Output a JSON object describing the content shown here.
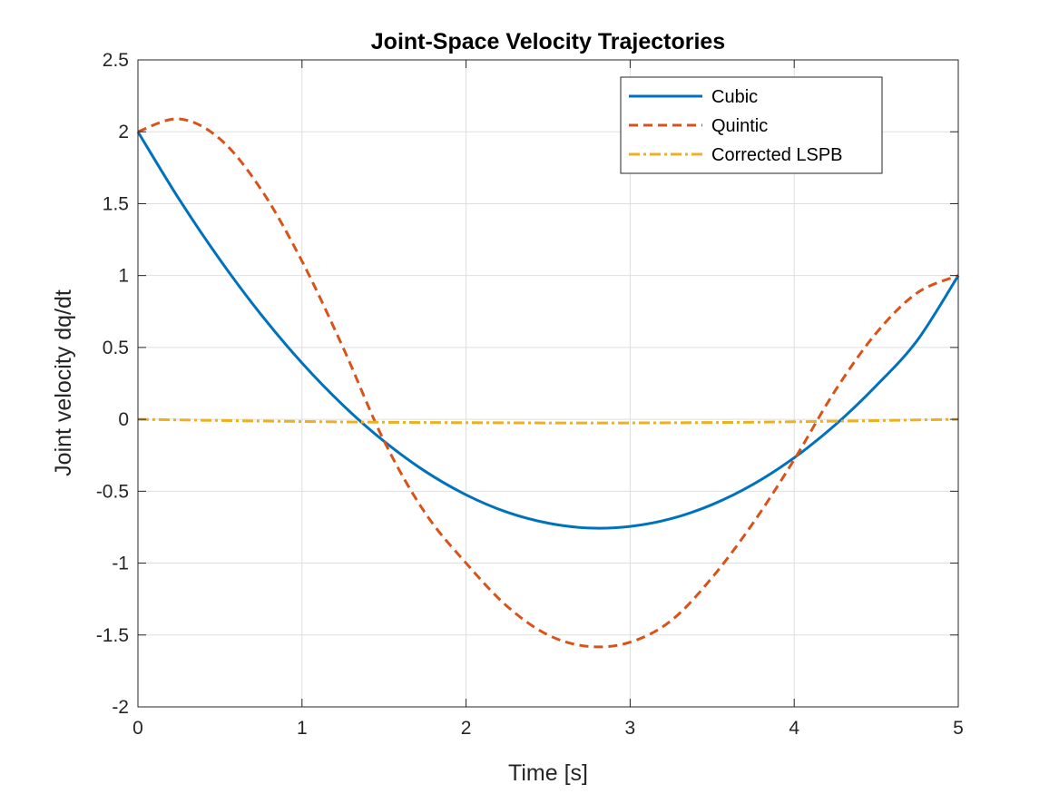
{
  "chart_data": {
    "type": "line",
    "title": "Joint-Space Velocity Trajectories",
    "xlabel": "Time [s]",
    "ylabel": "Joint velocity dq/dt",
    "xlim": [
      0,
      5
    ],
    "ylim": [
      -2,
      2.5
    ],
    "xticks": [
      0,
      1,
      2,
      3,
      4,
      5
    ],
    "yticks": [
      -2,
      -1.5,
      -1,
      -0.5,
      0,
      0.5,
      1,
      1.5,
      2,
      2.5
    ],
    "grid": true,
    "legend_position": "top-right",
    "x": [
      0,
      0.25,
      0.5,
      0.75,
      1,
      1.25,
      1.5,
      1.75,
      2,
      2.25,
      2.5,
      2.75,
      3,
      3.25,
      3.5,
      3.75,
      4,
      4.25,
      4.5,
      4.75,
      5
    ],
    "series": [
      {
        "name": "Cubic",
        "color": "#0072BD",
        "style": "solid",
        "values": [
          2.0,
          1.533,
          1.11,
          0.729,
          0.392,
          0.098,
          -0.153,
          -0.361,
          -0.525,
          -0.646,
          -0.722,
          -0.756,
          -0.745,
          -0.691,
          -0.593,
          -0.452,
          -0.267,
          -0.039,
          0.234,
          0.549,
          1.0
        ]
      },
      {
        "name": "Quintic",
        "color": "#D95319",
        "style": "dashed",
        "values": [
          2.0,
          2.09,
          1.95,
          1.6,
          1.1,
          0.5,
          -0.15,
          -0.65,
          -1.0,
          -1.3,
          -1.5,
          -1.58,
          -1.55,
          -1.4,
          -1.1,
          -0.72,
          -0.28,
          0.2,
          0.6,
          0.88,
          1.0
        ]
      },
      {
        "name": "Corrected LSPB",
        "color": "#EDB120",
        "style": "dashdot",
        "values": [
          0.0,
          -0.004,
          -0.008,
          -0.012,
          -0.015,
          -0.018,
          -0.02,
          -0.022,
          -0.023,
          -0.024,
          -0.025,
          -0.025,
          -0.025,
          -0.024,
          -0.022,
          -0.02,
          -0.017,
          -0.013,
          -0.009,
          -0.004,
          0.0
        ]
      }
    ]
  }
}
